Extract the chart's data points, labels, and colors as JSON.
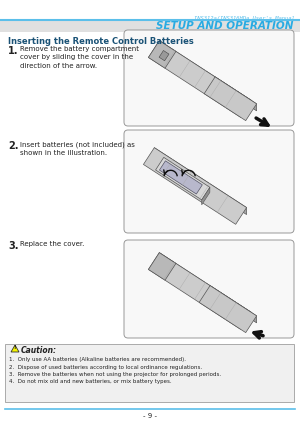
{
  "page_bg": "#ffffff",
  "header_text": "INS312a/INS316HDa User's Manual",
  "header_color": "#5bbfea",
  "header_line_color": "#5bbfea",
  "title_text": "SETUP AND OPERATION",
  "title_bg": "#e0e0e0",
  "title_color": "#29abe2",
  "section_title": "Inserting the Remote Control Batteries",
  "section_title_color": "#1a5276",
  "step1_num": "1.",
  "step1_text": "Remove the battery compartment\ncover by sliding the cover in the\ndirection of the arrow.",
  "step2_num": "2.",
  "step2_text": "Insert batteries (not included) as\nshown in the illustration.",
  "step3_num": "3.",
  "step3_text": "Replace the cover.",
  "caution_title": "Caution:",
  "caution_lines": [
    "1.  Only use AA batteries (Alkaline batteries are recommended).",
    "2.  Dispose of used batteries according to local ordinance regulations.",
    "3.  Remove the batteries when not using the projector for prolonged periods.",
    "4.  Do not mix old and new batteries, or mix battery types."
  ],
  "footer_line_color": "#5bbfea",
  "footer_text": "- 9 -",
  "text_color": "#222222",
  "box_edge_color": "#999999",
  "box_bg": "#f8f8f8",
  "step_num_color": "#222222"
}
